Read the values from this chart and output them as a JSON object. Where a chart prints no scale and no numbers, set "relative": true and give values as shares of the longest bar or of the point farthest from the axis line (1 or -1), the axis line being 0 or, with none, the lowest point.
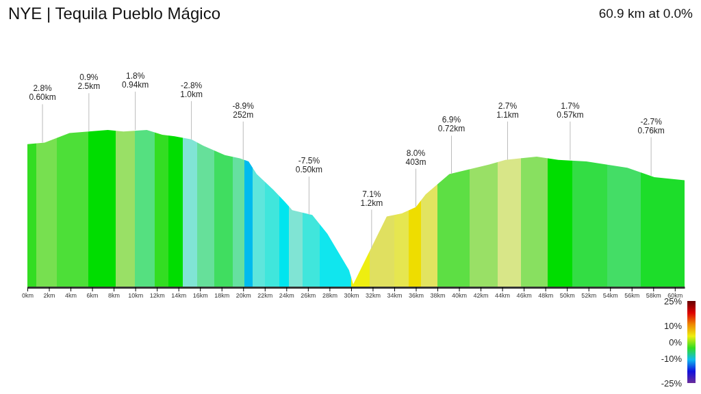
{
  "chart_data": {
    "type": "area",
    "title": "NYE | Tequila Pueblo Mágico",
    "subtitle": "60.9 km at 0.0%",
    "relative": true,
    "x": [
      0,
      1.6,
      3.9,
      7.45,
      8.9,
      11.07,
      12.5,
      13.65,
      15.2,
      16.3,
      18.3,
      19.7,
      20.5,
      21.25,
      22.8,
      23.9,
      24.55,
      26.4,
      27.8,
      29.8,
      30.2,
      33.3,
      34.7,
      36,
      36.9,
      39.1,
      42.8,
      44.3,
      47.2,
      49.2,
      51.8,
      55.6,
      58.1,
      60.9
    ],
    "values": [
      0.91,
      0.92,
      0.98,
      1.0,
      0.99,
      1.0,
      0.97,
      0.96,
      0.94,
      0.9,
      0.84,
      0.82,
      0.8,
      0.72,
      0.62,
      0.54,
      0.49,
      0.46,
      0.34,
      0.11,
      0.02,
      0.45,
      0.47,
      0.51,
      0.59,
      0.72,
      0.78,
      0.81,
      0.83,
      0.81,
      0.8,
      0.76,
      0.7,
      0.68
    ],
    "colors": [
      "#33dd22",
      "#77e050",
      "#4ddf38",
      "#00dd00",
      "#99e066",
      "#55e080",
      "#33dd22",
      "#00dd00",
      "#80e4d4",
      "#66e09a",
      "#40dd60",
      "#66e0a0",
      "#00bbee",
      "#5ee6dc",
      "#40e6dc",
      "#00e5ee",
      "#80e4d4",
      "#40e6dc",
      "#10e6ee",
      "#10e6ee",
      "#eeee10",
      "#e0e060",
      "#e6e650",
      "#eedd00",
      "#e2e460",
      "#5ddf44",
      "#99e066",
      "#d8e688",
      "#88e060",
      "#00dd00",
      "#33dd44",
      "#44dd66",
      "#1ddd2a",
      "#1ddd2a"
    ],
    "xlim": [
      0,
      60.9
    ],
    "xticks": [
      {
        "value": 0,
        "label": "0km"
      },
      {
        "value": 2,
        "label": "2km"
      },
      {
        "value": 4,
        "label": "4km"
      },
      {
        "value": 6,
        "label": "6km"
      },
      {
        "value": 8,
        "label": "8km"
      },
      {
        "value": 10,
        "label": "10km"
      },
      {
        "value": 12,
        "label": "12km"
      },
      {
        "value": 14,
        "label": "14km"
      },
      {
        "value": 16,
        "label": "16km"
      },
      {
        "value": 18,
        "label": "18km"
      },
      {
        "value": 20,
        "label": "20km"
      },
      {
        "value": 22,
        "label": "22km"
      },
      {
        "value": 24,
        "label": "24km"
      },
      {
        "value": 26,
        "label": "26km"
      },
      {
        "value": 28,
        "label": "28km"
      },
      {
        "value": 30,
        "label": "30km"
      },
      {
        "value": 32,
        "label": "32km"
      },
      {
        "value": 34,
        "label": "34km"
      },
      {
        "value": 36,
        "label": "36km"
      },
      {
        "value": 38,
        "label": "38km"
      },
      {
        "value": 40,
        "label": "40km"
      },
      {
        "value": 42,
        "label": "42km"
      },
      {
        "value": 44,
        "label": "44km"
      },
      {
        "value": 46,
        "label": "46km"
      },
      {
        "value": 48,
        "label": "48km"
      },
      {
        "value": 50,
        "label": "50km"
      },
      {
        "value": 52,
        "label": "52km"
      },
      {
        "value": 54,
        "label": "54km"
      },
      {
        "value": 56,
        "label": "56km"
      },
      {
        "value": 58,
        "label": "58km"
      },
      {
        "value": 60,
        "label": "60km"
      }
    ],
    "clim": [
      -25,
      25
    ],
    "cticks": [
      {
        "value": 25,
        "label": "25%"
      },
      {
        "value": 10,
        "label": "10%"
      },
      {
        "value": 0,
        "label": "0%"
      },
      {
        "value": -10,
        "label": "-10%"
      },
      {
        "value": -25,
        "label": "-25%"
      }
    ],
    "annotations": [
      {
        "text": "2.8%\n0.60km",
        "x": 1.4,
        "y": 0.92
      },
      {
        "text": "0.9%\n2.5km",
        "x": 5.7,
        "y": 0.99
      },
      {
        "text": "1.8%\n0.94km",
        "x": 10,
        "y": 1.0
      },
      {
        "text": "-2.8%\n1.0km",
        "x": 15.2,
        "y": 0.94
      },
      {
        "text": "-8.9%\n252m",
        "x": 20,
        "y": 0.81
      },
      {
        "text": "-7.5%\n0.50km",
        "x": 26.1,
        "y": 0.46
      },
      {
        "text": "7.1%\n1.2km",
        "x": 31.9,
        "y": 0.25
      },
      {
        "text": "8.0%\n403m",
        "x": 36,
        "y": 0.51
      },
      {
        "text": "6.9%\n0.72km",
        "x": 39.3,
        "y": 0.72
      },
      {
        "text": "2.7%\n1.1km",
        "x": 44.5,
        "y": 0.81
      },
      {
        "text": "1.7%\n0.57km",
        "x": 50.3,
        "y": 0.81
      },
      {
        "text": "-2.7%\n0.76km",
        "x": 57.8,
        "y": 0.71
      }
    ]
  }
}
